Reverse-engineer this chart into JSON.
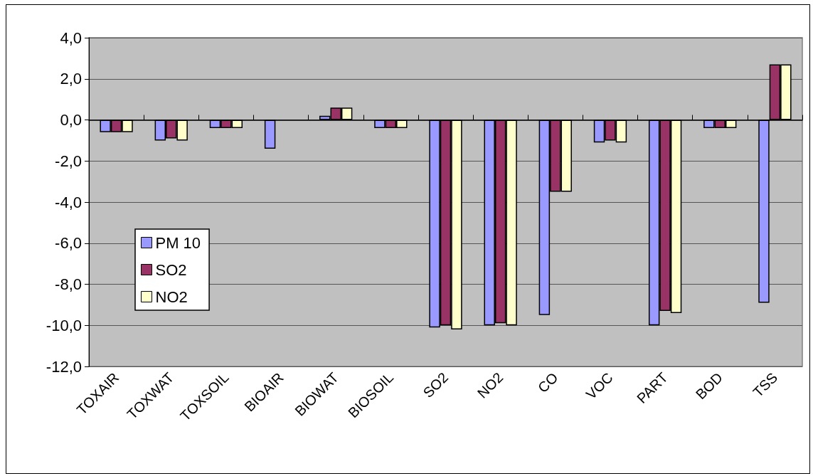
{
  "chart_data": {
    "type": "bar",
    "categories": [
      "TOXAIR",
      "TOXWAT",
      "TOXSOIL",
      "BIOAIR",
      "BIOWAT",
      "BIOSOIL",
      "SO2",
      "NO2",
      "CO",
      "VOC",
      "PART",
      "BOD",
      "TSS"
    ],
    "series": [
      {
        "name": "PM 10",
        "color": "#9999ff",
        "values": [
          -0.6,
          -1.0,
          -0.4,
          -1.4,
          0.2,
          -0.4,
          -10.1,
          -10.0,
          -9.5,
          -1.1,
          -10.0,
          -0.4,
          -8.9
        ]
      },
      {
        "name": "SO2",
        "color": "#993366",
        "values": [
          -0.6,
          -0.9,
          -0.4,
          null,
          0.6,
          -0.4,
          -10.0,
          -9.9,
          -3.5,
          -1.0,
          -9.3,
          -0.4,
          2.7
        ]
      },
      {
        "name": "NO2",
        "color": "#ffffcc",
        "values": [
          -0.6,
          -1.0,
          -0.4,
          null,
          0.6,
          -0.4,
          -10.2,
          -10.0,
          -3.5,
          -1.1,
          -9.4,
          -0.4,
          2.7
        ]
      }
    ],
    "ylim": [
      -12,
      4
    ],
    "yticks": [
      {
        "value": -12,
        "label": "-12,0"
      },
      {
        "value": -10,
        "label": "-10,0"
      },
      {
        "value": -8,
        "label": "-8,0"
      },
      {
        "value": -6,
        "label": "-6,0"
      },
      {
        "value": -4,
        "label": "-4,0"
      },
      {
        "value": -2,
        "label": "-2,0"
      },
      {
        "value": 0,
        "label": "0,0"
      },
      {
        "value": 2,
        "label": "2,0"
      },
      {
        "value": 4,
        "label": "4,0"
      }
    ],
    "grid": "y",
    "legend": "bottom left"
  }
}
